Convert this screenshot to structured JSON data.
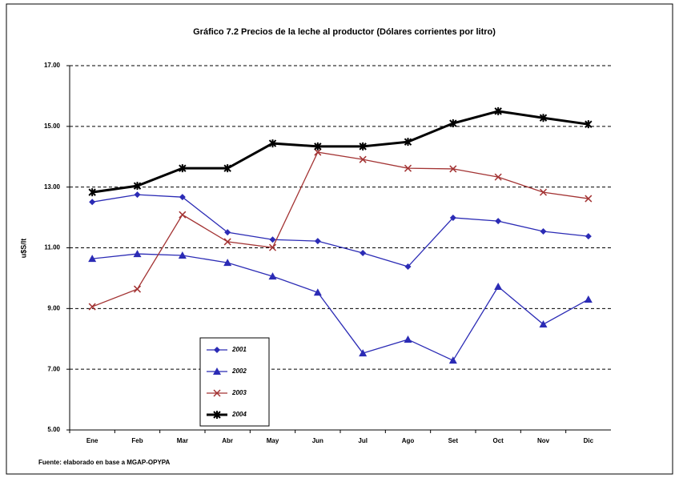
{
  "chart_data": {
    "type": "line",
    "title": "Gráfico 7.2 Precios de la leche al productor (Dólares corrientes por litro)",
    "y_label": "u$S/lt",
    "source": "Fuente: elaborado en base a MGAP-OPYPA",
    "categories": [
      "Ene",
      "Feb",
      "Mar",
      "Abr",
      "May",
      "Jun",
      "Jul",
      "Ago",
      "Set",
      "Oct",
      "Nov",
      "Dic"
    ],
    "series": [
      {
        "name": "2001",
        "color": "#2b2bb5",
        "marker": "diamond",
        "values": [
          12.51,
          12.75,
          12.67,
          11.51,
          11.27,
          11.22,
          10.83,
          10.38,
          11.99,
          11.88,
          11.54,
          11.38
        ]
      },
      {
        "name": "2002",
        "color": "#2b2bb5",
        "marker": "triangle",
        "values": [
          10.64,
          10.8,
          10.75,
          10.51,
          10.06,
          9.53,
          7.53,
          7.98,
          7.29,
          9.72,
          8.48,
          9.3
        ]
      },
      {
        "name": "2003",
        "color": "#a33333",
        "marker": "cross",
        "values": [
          9.06,
          9.64,
          12.09,
          11.2,
          11.01,
          14.15,
          13.91,
          13.62,
          13.6,
          13.33,
          12.83,
          12.62
        ]
      },
      {
        "name": "2004",
        "color": "#000000",
        "marker": "star",
        "values": [
          12.83,
          13.04,
          13.62,
          13.62,
          14.44,
          14.34,
          14.34,
          14.49,
          15.1,
          15.5,
          15.28,
          15.07
        ]
      }
    ],
    "ylim": [
      5,
      17
    ],
    "yticks": [
      {
        "value": 5,
        "label": "5.00"
      },
      {
        "value": 7,
        "label": "7.00"
      },
      {
        "value": 9,
        "label": "9.00"
      },
      {
        "value": 11,
        "label": "11.00"
      },
      {
        "value": 13,
        "label": "13.00"
      },
      {
        "value": 15,
        "label": "15.00"
      },
      {
        "value": 17,
        "label": "17.00"
      }
    ],
    "grid": true
  }
}
